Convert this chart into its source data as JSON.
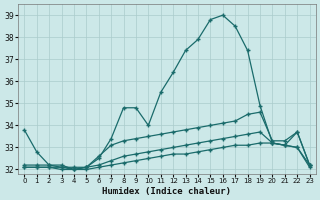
{
  "xlabel": "Humidex (Indice chaleur)",
  "background_color": "#cce8e8",
  "line_color": "#1a6b6b",
  "grid_color": "#aacccc",
  "xlim": [
    -0.5,
    23.5
  ],
  "ylim": [
    31.8,
    39.5
  ],
  "yticks": [
    32,
    33,
    34,
    35,
    36,
    37,
    38,
    39
  ],
  "xticks": [
    0,
    1,
    2,
    3,
    4,
    5,
    6,
    7,
    8,
    9,
    10,
    11,
    12,
    13,
    14,
    15,
    16,
    17,
    18,
    19,
    20,
    21,
    22,
    23
  ],
  "line1": [
    33.8,
    32.8,
    32.2,
    32.2,
    32.0,
    32.1,
    32.5,
    33.4,
    34.8,
    34.8,
    34.0,
    35.5,
    36.4,
    37.4,
    37.9,
    38.8,
    39.0,
    38.5,
    37.4,
    34.9,
    33.2,
    33.1,
    33.7,
    32.2
  ],
  "line2": [
    32.2,
    32.2,
    32.2,
    32.1,
    32.1,
    32.1,
    32.6,
    33.1,
    33.3,
    33.4,
    33.5,
    33.6,
    33.7,
    33.8,
    33.9,
    34.0,
    34.1,
    34.2,
    34.5,
    34.6,
    33.3,
    33.3,
    33.7,
    32.2
  ],
  "line3": [
    32.1,
    32.1,
    32.1,
    32.1,
    32.0,
    32.1,
    32.2,
    32.4,
    32.6,
    32.7,
    32.8,
    32.9,
    33.0,
    33.1,
    33.2,
    33.3,
    33.4,
    33.5,
    33.6,
    33.7,
    33.2,
    33.1,
    33.0,
    32.2
  ],
  "line4": [
    32.1,
    32.1,
    32.1,
    32.0,
    32.0,
    32.0,
    32.1,
    32.2,
    32.3,
    32.4,
    32.5,
    32.6,
    32.7,
    32.7,
    32.8,
    32.9,
    33.0,
    33.1,
    33.1,
    33.2,
    33.2,
    33.1,
    33.0,
    32.1
  ]
}
